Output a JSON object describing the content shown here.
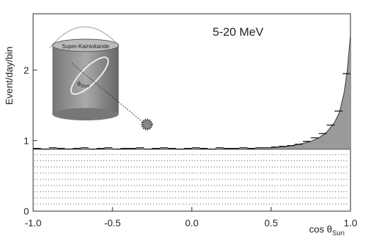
{
  "chart_data": {
    "type": "scatter",
    "title": "5-20 MeV",
    "ylabel": "Event/day/bin",
    "xlabel": "cos θ",
    "xlabel_sub": "Sun",
    "inset_label": "Super-Kamiokande",
    "inset_angle": "θ",
    "inset_angle_sub": "Sun",
    "x": [
      -0.975,
      -0.925,
      -0.875,
      -0.825,
      -0.775,
      -0.725,
      -0.675,
      -0.625,
      -0.575,
      -0.525,
      -0.475,
      -0.425,
      -0.375,
      -0.325,
      -0.275,
      -0.225,
      -0.175,
      -0.125,
      -0.075,
      -0.025,
      0.025,
      0.075,
      0.125,
      0.175,
      0.225,
      0.275,
      0.325,
      0.375,
      0.425,
      0.475,
      0.525,
      0.575,
      0.625,
      0.675,
      0.725,
      0.775,
      0.825,
      0.875,
      0.925,
      0.975
    ],
    "values": [
      0.89,
      0.88,
      0.9,
      0.89,
      0.88,
      0.89,
      0.9,
      0.88,
      0.89,
      0.9,
      0.88,
      0.89,
      0.89,
      0.9,
      0.88,
      0.89,
      0.9,
      0.89,
      0.88,
      0.89,
      0.9,
      0.89,
      0.88,
      0.9,
      0.89,
      0.89,
      0.9,
      0.89,
      0.9,
      0.9,
      0.91,
      0.92,
      0.93,
      0.95,
      0.99,
      1.04,
      1.1,
      1.22,
      1.42,
      1.95
    ],
    "color": "#111",
    "background_level": 0.88,
    "fit_x": [
      0.5,
      0.6,
      0.7,
      0.75,
      0.8,
      0.85,
      0.9,
      0.93,
      0.96,
      0.98,
      1.0
    ],
    "fit_values": [
      0.9,
      0.92,
      0.96,
      0.99,
      1.04,
      1.12,
      1.26,
      1.4,
      1.68,
      2.0,
      2.5
    ],
    "fit_color": "#9a9a9a",
    "xlim": [
      -1,
      1
    ],
    "ylim": [
      0,
      2.8
    ],
    "xticks": [
      {
        "value": -1,
        "label": "-1.0"
      },
      {
        "value": -0.5,
        "label": "-0.5"
      },
      {
        "value": 0,
        "label": "0.0"
      },
      {
        "value": 0.5,
        "label": "0.5"
      },
      {
        "value": 1,
        "label": "1.0"
      }
    ],
    "yticks": [
      0,
      1,
      2
    ]
  }
}
